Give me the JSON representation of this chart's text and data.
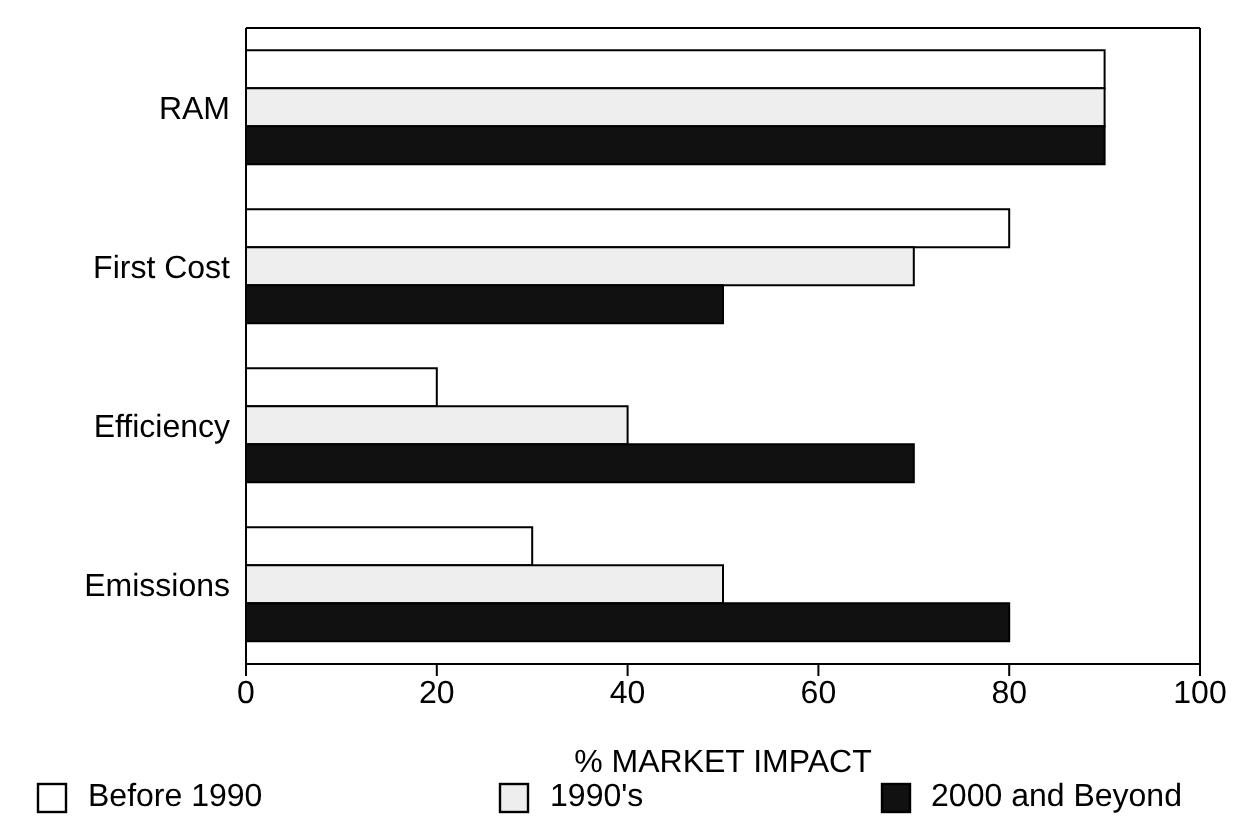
{
  "chart_data": {
    "type": "bar",
    "orientation": "horizontal",
    "xlabel": "% MARKET IMPACT",
    "categories": [
      "RAM",
      "First Cost",
      "Efficiency",
      "Emissions"
    ],
    "series": [
      {
        "name": "Before 1990",
        "color": "#ffffff",
        "values": [
          90,
          80,
          20,
          30
        ]
      },
      {
        "name": "1990's",
        "color": "#eeeeee",
        "values": [
          90,
          70,
          40,
          50
        ]
      },
      {
        "name": "2000 and Beyond",
        "color": "#111111",
        "values": [
          90,
          50,
          70,
          80
        ]
      }
    ],
    "xlim": [
      0,
      100
    ],
    "xticks": [
      0,
      20,
      40,
      60,
      80,
      100
    ],
    "grid": false,
    "legend": "bottom"
  }
}
